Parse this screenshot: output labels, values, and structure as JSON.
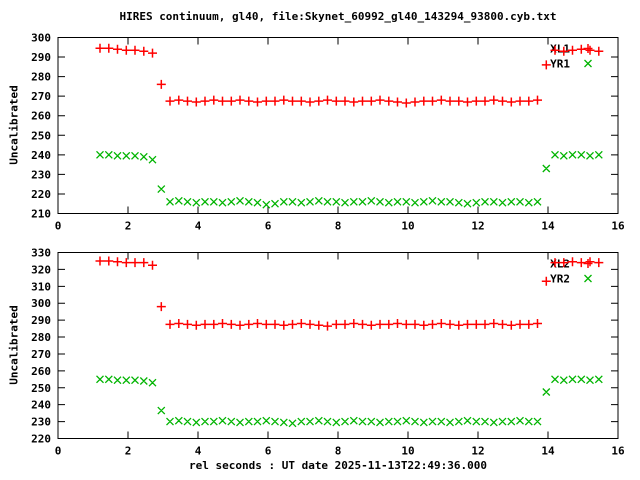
{
  "title": "HIRES continuum, gl40, file:Skynet_60992_gl40_143294_93800.cyb.txt",
  "xlabel": "rel seconds : UT date 2025-11-13T22:49:36.000",
  "colors": {
    "red": "#ff0000",
    "green": "#00b400",
    "axis": "#000000",
    "background": "#ffffff"
  },
  "chart_data": [
    {
      "type": "scatter",
      "ylabel": "Uncalibrated",
      "xlim": [
        0,
        16
      ],
      "ylim": [
        210,
        300
      ],
      "xticks": [
        0,
        2,
        4,
        6,
        8,
        10,
        12,
        14,
        16
      ],
      "yticks": [
        210,
        220,
        230,
        240,
        250,
        260,
        270,
        280,
        290,
        300
      ],
      "legend_position": "top-right-inside",
      "grid": false,
      "x": [
        1.2,
        1.45,
        1.7,
        1.95,
        2.2,
        2.45,
        2.7,
        2.95,
        3.2,
        3.45,
        3.7,
        3.95,
        4.2,
        4.45,
        4.7,
        4.95,
        5.2,
        5.45,
        5.7,
        5.95,
        6.2,
        6.45,
        6.7,
        6.95,
        7.2,
        7.45,
        7.7,
        7.95,
        8.2,
        8.45,
        8.7,
        8.95,
        9.2,
        9.45,
        9.7,
        9.95,
        10.2,
        10.45,
        10.7,
        10.95,
        11.2,
        11.45,
        11.7,
        11.95,
        12.2,
        12.45,
        12.7,
        12.95,
        13.2,
        13.45,
        13.7,
        13.95,
        14.2,
        14.45,
        14.7,
        14.95,
        15.2,
        15.45
      ],
      "series": [
        {
          "name": "XL1",
          "marker": "plus",
          "color": "#ff0000",
          "y": [
            294.5,
            294.5,
            294,
            293.5,
            293.5,
            293,
            292,
            276,
            267.5,
            268,
            267.5,
            267,
            267.5,
            268,
            267.5,
            267.5,
            268,
            267.5,
            267,
            267.5,
            267.5,
            268,
            267.5,
            267.5,
            267,
            267.5,
            268,
            267.5,
            267.5,
            267,
            267.5,
            267.5,
            268,
            267.5,
            267,
            266.5,
            267,
            267.5,
            267.5,
            268,
            267.5,
            267.5,
            267,
            267.5,
            267.5,
            268,
            267.5,
            267,
            267.5,
            267.5,
            268,
            286,
            293.5,
            293,
            293.5,
            294,
            293.5,
            293
          ]
        },
        {
          "name": "YR1",
          "marker": "cross",
          "color": "#00b400",
          "y": [
            240,
            240,
            239.5,
            239.5,
            239.5,
            239,
            237.5,
            222.5,
            216,
            216.5,
            216,
            215.5,
            216,
            216,
            215.5,
            216,
            216.5,
            216,
            215.5,
            214.5,
            215,
            216,
            216,
            215.5,
            216,
            216.5,
            216,
            216,
            215.5,
            216,
            216,
            216.5,
            216,
            215.5,
            216,
            216,
            215.5,
            216,
            216.5,
            216,
            216,
            215.5,
            215,
            215.5,
            216,
            216,
            215.5,
            216,
            216,
            215.5,
            216,
            233,
            240,
            239.5,
            240,
            240,
            239.5,
            240
          ]
        }
      ]
    },
    {
      "type": "scatter",
      "ylabel": "Uncalibrated",
      "xlim": [
        0,
        16
      ],
      "ylim": [
        220,
        330
      ],
      "xticks": [
        0,
        2,
        4,
        6,
        8,
        10,
        12,
        14,
        16
      ],
      "yticks": [
        220,
        230,
        240,
        250,
        260,
        270,
        280,
        290,
        300,
        310,
        320,
        330
      ],
      "legend_position": "top-right-inside",
      "grid": false,
      "x": [
        1.2,
        1.45,
        1.7,
        1.95,
        2.2,
        2.45,
        2.7,
        2.95,
        3.2,
        3.45,
        3.7,
        3.95,
        4.2,
        4.45,
        4.7,
        4.95,
        5.2,
        5.45,
        5.7,
        5.95,
        6.2,
        6.45,
        6.7,
        6.95,
        7.2,
        7.45,
        7.7,
        7.95,
        8.2,
        8.45,
        8.7,
        8.95,
        9.2,
        9.45,
        9.7,
        9.95,
        10.2,
        10.45,
        10.7,
        10.95,
        11.2,
        11.45,
        11.7,
        11.95,
        12.2,
        12.45,
        12.7,
        12.95,
        13.2,
        13.45,
        13.7,
        13.95,
        14.2,
        14.45,
        14.7,
        14.95,
        15.2,
        15.45
      ],
      "series": [
        {
          "name": "XL2",
          "marker": "plus",
          "color": "#ff0000",
          "y": [
            325,
            325,
            324.5,
            324,
            324,
            324,
            322.5,
            298,
            287.5,
            288,
            287.5,
            287,
            287.5,
            287.5,
            288,
            287.5,
            287,
            287.5,
            288,
            287.5,
            287.5,
            287,
            287.5,
            288,
            287.5,
            287,
            286.5,
            287.5,
            287.5,
            288,
            287.5,
            287,
            287.5,
            287.5,
            288,
            287.5,
            287.5,
            287,
            287.5,
            288,
            287.5,
            287,
            287.5,
            287.5,
            287.5,
            288,
            287.5,
            287,
            287.5,
            287.5,
            288,
            313,
            324,
            324,
            324.5,
            324,
            324.5,
            324
          ]
        },
        {
          "name": "YR2",
          "marker": "cross",
          "color": "#00b400",
          "y": [
            255,
            255,
            254.5,
            254.5,
            254.5,
            254,
            253,
            236.5,
            230,
            230.5,
            230,
            229.5,
            230,
            230,
            230.5,
            230,
            229.5,
            230,
            230,
            230.5,
            230,
            229.5,
            229,
            230,
            230,
            230.5,
            230,
            229.5,
            230,
            230.5,
            230,
            230,
            229.5,
            230,
            230,
            230.5,
            230,
            229.5,
            230,
            230,
            229.5,
            230,
            230.5,
            230,
            230,
            229.5,
            230,
            230,
            230.5,
            230,
            230,
            247.5,
            255,
            254.5,
            255,
            255,
            254.5,
            255
          ]
        }
      ]
    }
  ]
}
